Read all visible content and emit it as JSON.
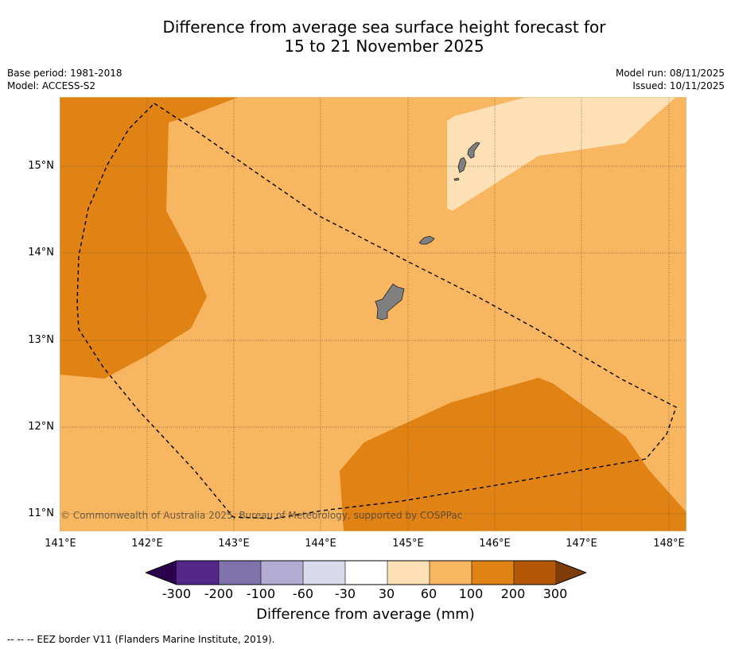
{
  "title": {
    "line1": "Difference from average sea surface height forecast for",
    "line2": "15 to 21 November 2025"
  },
  "meta": {
    "base_period": "Base period: 1981-2018",
    "model": "Model: ACCESS-S2",
    "model_run": "Model run: 08/11/2025",
    "issued": "Issued: 10/11/2025"
  },
  "map": {
    "lon_labels": [
      "141°E",
      "142°E",
      "143°E",
      "144°E",
      "145°E",
      "146°E",
      "147°E",
      "148°E"
    ],
    "lat_labels": [
      "15°N",
      "14°N",
      "13°N",
      "12°N",
      "11°N"
    ],
    "copyright": "© Commonwealth of Australia 2025, Bureau of Meteorology, supported by COSPPac"
  },
  "colorbar": {
    "labels": [
      "-300",
      "-200",
      "-100",
      "-60",
      "-30",
      "30",
      "60",
      "100",
      "200",
      "300"
    ],
    "title": "Difference from average (mm)",
    "colors": {
      "neg_extend": "#2d004b",
      "n300_200": "#542788",
      "n200_100": "#8073ac",
      "n100_60": "#b2abd2",
      "n60_30": "#d8daeb",
      "n30_30": "#ffffff",
      "p30_60": "#fee0b6",
      "p60_100": "#f9b660",
      "p100_200": "#e08214",
      "p200_300": "#b35806",
      "pos_extend": "#7f3b08"
    }
  },
  "footer": "--  --  -- EEZ border V11 (Flanders Marine Institute, 2019)."
}
